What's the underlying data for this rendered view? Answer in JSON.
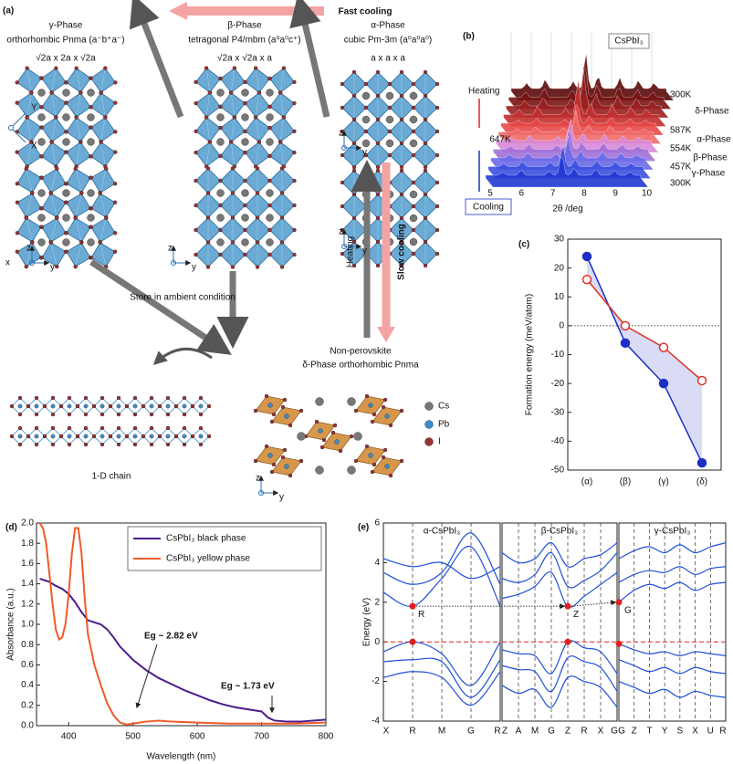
{
  "diagram": {
    "label": "(a)",
    "fast_cooling": "Fast cooling",
    "slow_cooling": "Slow cooling",
    "heating": "Heating",
    "store": "Store in ambient condition",
    "gamma": [
      "γ-Phase",
      "orthorhombic Pnma (a⁻b⁺a⁻)",
      "√2a x 2a x √2a"
    ],
    "beta": [
      "β-Phase",
      "tetragonal P4/mbm (a⁰a⁰c⁺)",
      "√2a x √2a x a"
    ],
    "alpha": [
      "α-Phase",
      "cubic Pm-3m (a⁰a⁰a⁰)",
      "a x a x a"
    ],
    "delta": [
      "Non-perovskite",
      "δ-Phase orthorhombic Pnma"
    ],
    "legend": [
      "Cs",
      "Pb",
      "I"
    ],
    "chain": "1-D chain",
    "axis_labels": [
      "Y",
      "X",
      "z",
      "x",
      "y",
      "z",
      "y",
      "z",
      "y",
      "z",
      "y",
      "z",
      "y"
    ]
  },
  "xrd": {
    "label": "(b)",
    "sample": "CsPbI₃",
    "heating": "Heating",
    "cooling": "Cooling",
    "temp_left": "647K",
    "temps": [
      "300K",
      "587K",
      "554K",
      "457K",
      "300K"
    ],
    "phases": [
      "δ-Phase",
      "α-Phase",
      "β-Phase",
      "γ-Phase"
    ],
    "xticks": [
      5,
      6,
      7,
      8,
      9,
      10
    ],
    "xlabel": "2θ /deg"
  },
  "chart_data": [
    {
      "type": "line",
      "panel": "(c)",
      "ylabel": "Formation energy (meV/atom)",
      "categories": [
        "(α)",
        "(β)",
        "(γ)",
        "(δ)"
      ],
      "series": [
        {
          "name": "blue",
          "color": "#1b2fc4",
          "filled": true,
          "values": [
            24,
            -6,
            -20,
            -47.5
          ]
        },
        {
          "name": "red",
          "color": "#e0302a",
          "filled": false,
          "values": [
            16,
            0,
            -7.5,
            -19
          ]
        }
      ],
      "ylim": [
        -50,
        30
      ],
      "yticks": [
        -50,
        -40,
        -30,
        -20,
        -10,
        0,
        10,
        20,
        30
      ]
    },
    {
      "type": "xyline",
      "panel": "(d)",
      "xlabel": "Wavelength (nm)",
      "ylabel": "Absorbance (a.u.)",
      "xlim": [
        350,
        800
      ],
      "xticks": [
        400,
        500,
        600,
        700,
        800
      ],
      "ylim": [
        0,
        2
      ],
      "yticks": [
        {
          "value": 0,
          "label": "0.0"
        },
        0.2,
        0.4,
        0.6,
        0.8,
        {
          "value": 1,
          "label": "1.0"
        },
        1.2,
        1.4,
        1.6,
        1.8,
        {
          "value": 2,
          "label": "2.0"
        }
      ],
      "annotations": [
        "Eg ~ 2.82 eV",
        "Eg ~ 1.73 eV"
      ],
      "series": [
        {
          "name": "CsPbI₃ black phase",
          "color": "#4b1c8c",
          "x": [
            355,
            370,
            380,
            390,
            400,
            410,
            420,
            430,
            440,
            450,
            460,
            470,
            480,
            500,
            520,
            540,
            560,
            580,
            600,
            620,
            640,
            660,
            680,
            700,
            710,
            720,
            740,
            760,
            780,
            800
          ],
          "values": [
            1.45,
            1.42,
            1.38,
            1.35,
            1.3,
            1.22,
            1.12,
            1.04,
            1.02,
            1.0,
            0.95,
            0.87,
            0.78,
            0.65,
            0.55,
            0.47,
            0.41,
            0.35,
            0.3,
            0.25,
            0.21,
            0.18,
            0.16,
            0.14,
            0.08,
            0.05,
            0.04,
            0.04,
            0.05,
            0.06
          ]
        },
        {
          "name": "CsPbI₃ yellow phase",
          "color": "#f05a28",
          "x": [
            355,
            360,
            365,
            370,
            375,
            380,
            385,
            390,
            395,
            400,
            405,
            410,
            415,
            420,
            425,
            430,
            440,
            450,
            460,
            470,
            480,
            490,
            500,
            520,
            540,
            560,
            600,
            650,
            700,
            750,
            800
          ],
          "values": [
            2.0,
            1.95,
            1.8,
            1.5,
            1.2,
            0.95,
            0.85,
            0.87,
            1.0,
            1.3,
            1.7,
            1.95,
            1.95,
            1.7,
            1.25,
            0.9,
            0.6,
            0.4,
            0.22,
            0.1,
            0.03,
            0.01,
            0.02,
            0.04,
            0.05,
            0.04,
            0.03,
            0.02,
            0.02,
            0.02,
            0.03
          ]
        }
      ]
    },
    {
      "type": "bands",
      "panel": "(e)",
      "ylabel": "Energy (eV)",
      "color": "#1f4fd8",
      "ylim": [
        -4,
        6
      ],
      "yticks": [
        -4,
        -2,
        0,
        2,
        4,
        6
      ],
      "panels": [
        {
          "title": "α-CsPbI₃",
          "kpoints": [
            "X",
            "R",
            "M",
            "G",
            "R"
          ],
          "gap_label": "R",
          "bands": [
            [
              2.5,
              1.8,
              3.2,
              4.8,
              1.8
            ],
            [
              3.5,
              2.9,
              3.5,
              5.5,
              2.9
            ],
            [
              4.2,
              3.8,
              4.0,
              3.2,
              3.8
            ],
            [
              -0.5,
              0,
              -0.6,
              -2.2,
              0
            ],
            [
              -1.0,
              -0.9,
              -1.0,
              -2.8,
              -0.9
            ],
            [
              -1.8,
              -1.5,
              -1.8,
              -3.2,
              -1.5
            ]
          ]
        },
        {
          "title": "β-CsPbI₃",
          "kpoints": [
            "Z",
            "A",
            "M",
            "G",
            "Z",
            "R",
            "X",
            "G"
          ],
          "gap_label": "Z",
          "bands": [
            [
              2.2,
              2.4,
              2.8,
              3.5,
              1.8,
              2.3,
              2.9,
              3.5
            ],
            [
              3.2,
              3.0,
              3.4,
              4.5,
              2.8,
              3.1,
              3.6,
              4.5
            ],
            [
              4.5,
              4.0,
              4.2,
              5.0,
              3.8,
              4.2,
              4.4,
              5.0
            ],
            [
              -0.4,
              -0.6,
              -0.7,
              -1.6,
              0,
              -0.3,
              -0.5,
              -1.6
            ],
            [
              -1.2,
              -1.4,
              -1.5,
              -2.5,
              -0.8,
              -1.0,
              -1.3,
              -2.5
            ],
            [
              -2.2,
              -2.6,
              -2.4,
              -3.3,
              -1.8,
              -2.0,
              -2.3,
              -3.3
            ]
          ]
        },
        {
          "title": "γ-CsPbI₃",
          "kpoints": [
            "G",
            "Z",
            "T",
            "Y",
            "S",
            "X",
            "U",
            "R"
          ],
          "gap_label": "G",
          "bands": [
            [
              2.0,
              2.6,
              2.9,
              2.7,
              3.0,
              2.6,
              2.9,
              3.0
            ],
            [
              3.0,
              3.4,
              3.6,
              3.5,
              3.8,
              3.4,
              3.7,
              3.8
            ],
            [
              4.2,
              4.6,
              4.8,
              4.5,
              4.9,
              4.5,
              4.8,
              5.0
            ],
            [
              -0.1,
              -0.4,
              -0.6,
              -0.5,
              -0.7,
              -0.5,
              -0.6,
              -0.7
            ],
            [
              -0.9,
              -1.2,
              -1.5,
              -1.3,
              -1.6,
              -1.3,
              -1.5,
              -1.6
            ],
            [
              -2.0,
              -2.3,
              -2.6,
              -2.4,
              -2.8,
              -2.5,
              -2.7,
              -2.8
            ]
          ]
        }
      ]
    }
  ]
}
